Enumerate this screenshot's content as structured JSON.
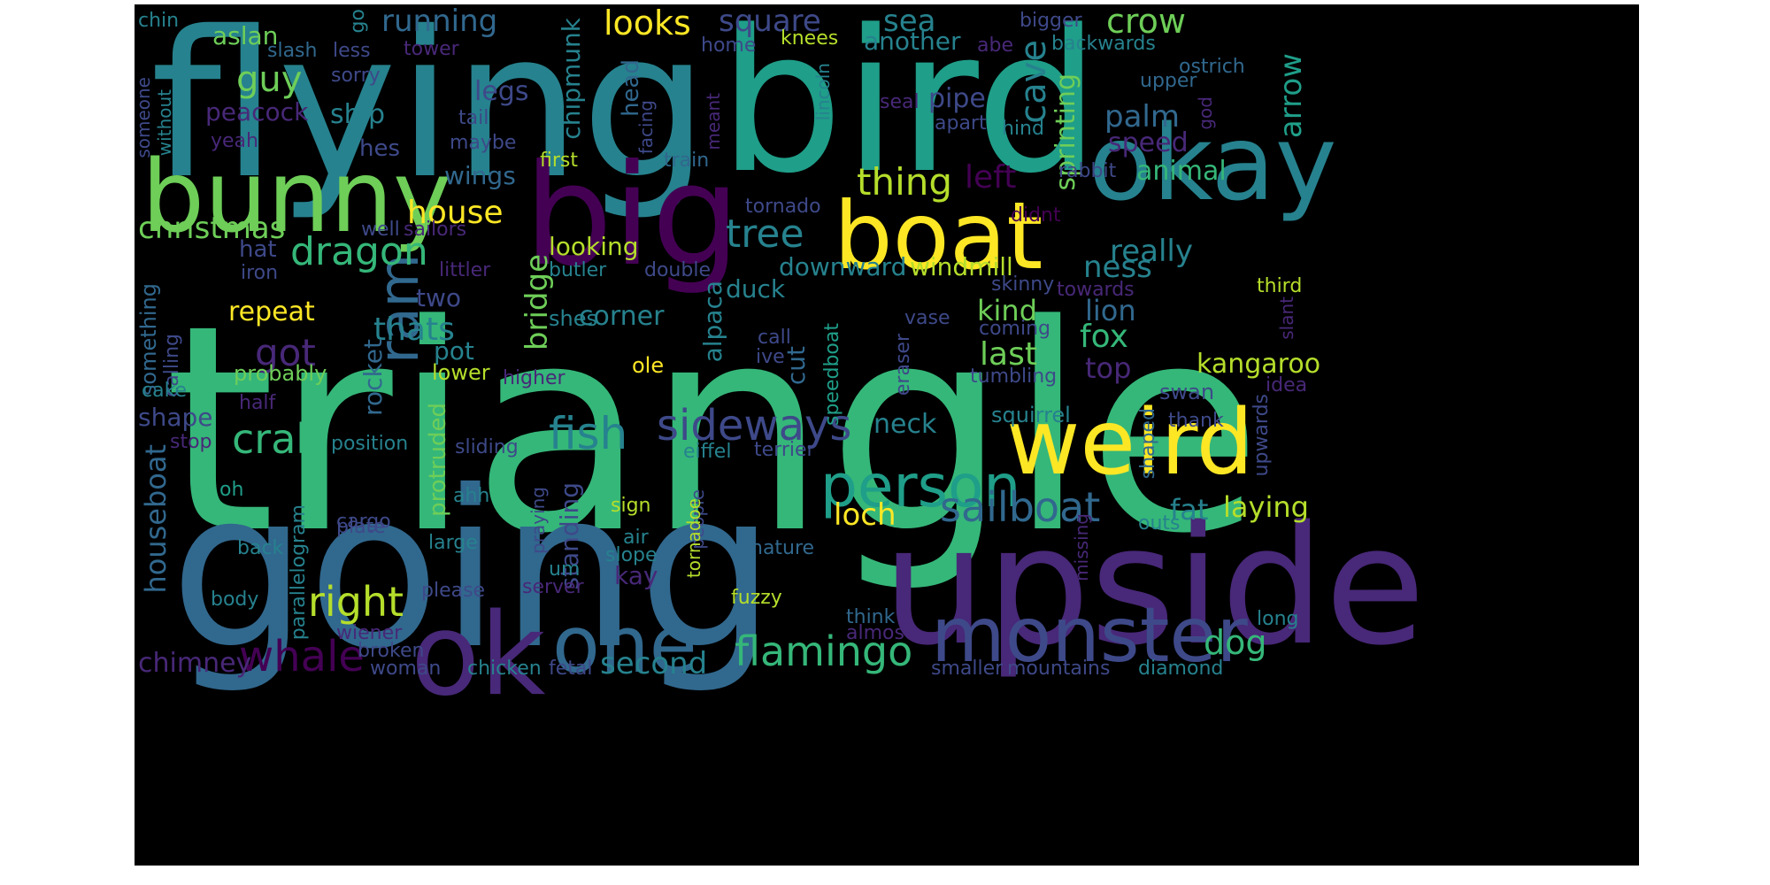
{
  "palette": {
    "background": "#000000",
    "colors": [
      "#440154",
      "#482878",
      "#3e4989",
      "#31688e",
      "#26828e",
      "#1f9e89",
      "#35b779",
      "#6ece58",
      "#b5de2b",
      "#fde725"
    ]
  },
  "words": [
    {
      "text": "triangle",
      "size": 322,
      "color": "#35b779"
    },
    {
      "text": "going",
      "size": 245,
      "color": "#31688e"
    },
    {
      "text": "flying",
      "size": 228,
      "color": "#26828e"
    },
    {
      "text": "bird",
      "size": 222,
      "color": "#1f9e89"
    },
    {
      "text": "upside",
      "size": 185,
      "color": "#482878"
    },
    {
      "text": "big",
      "size": 158,
      "color": "#440154"
    },
    {
      "text": "ok",
      "size": 128,
      "color": "#482878"
    },
    {
      "text": "okay",
      "size": 118,
      "color": "#26828e"
    },
    {
      "text": "bunny",
      "size": 112,
      "color": "#6ece58"
    },
    {
      "text": "boat",
      "size": 105,
      "color": "#fde725"
    },
    {
      "text": "weird",
      "size": 102,
      "color": "#fde725"
    },
    {
      "text": "one",
      "size": 88,
      "color": "#31688e"
    },
    {
      "text": "monster",
      "size": 86,
      "color": "#3e4989"
    },
    {
      "text": "person",
      "size": 66,
      "color": "#1f9e89"
    },
    {
      "text": "ram",
      "size": 62,
      "color": "#31688e"
    },
    {
      "text": "fish",
      "size": 50,
      "color": "#26828e"
    },
    {
      "text": "sideways",
      "size": 48,
      "color": "#3e4989"
    },
    {
      "text": "whale",
      "size": 48,
      "color": "#440154"
    },
    {
      "text": "crab",
      "size": 46,
      "color": "#35b779"
    },
    {
      "text": "sailboat",
      "size": 46,
      "color": "#31688e"
    },
    {
      "text": "flamingo",
      "size": 46,
      "color": "#35b779"
    },
    {
      "text": "right",
      "size": 46,
      "color": "#b5de2b"
    },
    {
      "text": "dragon",
      "size": 44,
      "color": "#35b779"
    },
    {
      "text": "tree",
      "size": 44,
      "color": "#26828e"
    },
    {
      "text": "got",
      "size": 42,
      "color": "#482878"
    },
    {
      "text": "thing",
      "size": 42,
      "color": "#b5de2b"
    },
    {
      "text": "cave",
      "size": 40,
      "color": "#26828e"
    },
    {
      "text": "guy",
      "size": 40,
      "color": "#6ece58"
    },
    {
      "text": "crow",
      "size": 38,
      "color": "#6ece58"
    },
    {
      "text": "looks",
      "size": 38,
      "color": "#fde725"
    },
    {
      "text": "dog",
      "size": 38,
      "color": "#35b779"
    },
    {
      "text": "thats",
      "size": 36,
      "color": "#26828e"
    },
    {
      "text": "fox",
      "size": 36,
      "color": "#35b779"
    },
    {
      "text": "last",
      "size": 36,
      "color": "#6ece58"
    },
    {
      "text": "left",
      "size": 36,
      "color": "#440154"
    },
    {
      "text": "house",
      "size": 36,
      "color": "#fde725"
    },
    {
      "text": "bridge",
      "size": 34,
      "color": "#6ece58"
    },
    {
      "text": "christmas",
      "size": 34,
      "color": "#6ece58"
    },
    {
      "text": "running",
      "size": 34,
      "color": "#31688e"
    },
    {
      "text": "square",
      "size": 34,
      "color": "#3e4989"
    },
    {
      "text": "sea",
      "size": 34,
      "color": "#26828e"
    },
    {
      "text": "second",
      "size": 34,
      "color": "#26828e"
    },
    {
      "text": "loch",
      "size": 34,
      "color": "#fde725"
    },
    {
      "text": "ness",
      "size": 34,
      "color": "#26828e"
    },
    {
      "text": "really",
      "size": 34,
      "color": "#26828e"
    },
    {
      "text": "palm",
      "size": 34,
      "color": "#31688e"
    },
    {
      "text": "arrow",
      "size": 34,
      "color": "#1f9e89"
    },
    {
      "text": "houseboat",
      "size": 32,
      "color": "#31688e"
    },
    {
      "text": "kind",
      "size": 32,
      "color": "#6ece58"
    },
    {
      "text": "lion",
      "size": 32,
      "color": "#31688e"
    },
    {
      "text": "top",
      "size": 32,
      "color": "#482878"
    },
    {
      "text": "fat",
      "size": 32,
      "color": "#26828e"
    },
    {
      "text": "laying",
      "size": 32,
      "color": "#b5de2b"
    },
    {
      "text": "chimney",
      "size": 30,
      "color": "#482878"
    },
    {
      "text": "repeat",
      "size": 30,
      "color": "#fde725"
    },
    {
      "text": "corner",
      "size": 30,
      "color": "#26828e"
    },
    {
      "text": "legs",
      "size": 30,
      "color": "#3e4989"
    },
    {
      "text": "ship",
      "size": 30,
      "color": "#26828e"
    },
    {
      "text": "pipe",
      "size": 30,
      "color": "#3e4989"
    },
    {
      "text": "neck",
      "size": 30,
      "color": "#26828e"
    },
    {
      "text": "kangaroo",
      "size": 30,
      "color": "#b5de2b"
    },
    {
      "text": "speed",
      "size": 30,
      "color": "#482878"
    },
    {
      "text": "animal",
      "size": 30,
      "color": "#35b779"
    },
    {
      "text": "sprinting",
      "size": 30,
      "color": "#6ece58"
    },
    {
      "text": "standing",
      "size": 28,
      "color": "#3e4989"
    },
    {
      "text": "wings",
      "size": 28,
      "color": "#31688e"
    },
    {
      "text": "aslan",
      "size": 28,
      "color": "#6ece58"
    },
    {
      "text": "peacock",
      "size": 28,
      "color": "#482878"
    },
    {
      "text": "chipmunk",
      "size": 28,
      "color": "#26828e"
    },
    {
      "text": "downward",
      "size": 28,
      "color": "#26828e"
    },
    {
      "text": "windmill",
      "size": 28,
      "color": "#b5de2b"
    },
    {
      "text": "duck",
      "size": 28,
      "color": "#26828e"
    },
    {
      "text": "looking",
      "size": 28,
      "color": "#b5de2b"
    },
    {
      "text": "two",
      "size": 28,
      "color": "#3e4989"
    },
    {
      "text": "pot",
      "size": 28,
      "color": "#26828e"
    },
    {
      "text": "alpaca",
      "size": 28,
      "color": "#26828e"
    },
    {
      "text": "shape",
      "size": 28,
      "color": "#3e4989"
    },
    {
      "text": "rocket",
      "size": 28,
      "color": "#31688e"
    },
    {
      "text": "cut",
      "size": 28,
      "color": "#31688e"
    },
    {
      "text": "kay",
      "size": 28,
      "color": "#482878"
    },
    {
      "text": "another",
      "size": 28,
      "color": "#26828e"
    },
    {
      "text": "hat",
      "size": 26,
      "color": "#3e4989"
    },
    {
      "text": "head",
      "size": 26,
      "color": "#31688e"
    },
    {
      "text": "protruded",
      "size": 26,
      "color": "#6ece58"
    },
    {
      "text": "hes",
      "size": 26,
      "color": "#3e4989"
    },
    {
      "text": "something",
      "size": 24,
      "color": "#31688e"
    },
    {
      "text": "probably",
      "size": 24,
      "color": "#6ece58"
    },
    {
      "text": "squirrel",
      "size": 24,
      "color": "#26828e"
    },
    {
      "text": "swan",
      "size": 24,
      "color": "#3e4989"
    },
    {
      "text": "lower",
      "size": 24,
      "color": "#b5de2b"
    },
    {
      "text": "ole",
      "size": 24,
      "color": "#fde725"
    },
    {
      "text": "shes",
      "size": 24,
      "color": "#26828e"
    },
    {
      "text": "yeah",
      "size": 22,
      "color": "#482878"
    },
    {
      "text": "first",
      "size": 22,
      "color": "#b5de2b"
    },
    {
      "text": "train",
      "size": 22,
      "color": "#31688e"
    },
    {
      "text": "maybe",
      "size": 22,
      "color": "#3e4989"
    },
    {
      "text": "tail",
      "size": 22,
      "color": "#3e4989"
    },
    {
      "text": "knees",
      "size": 22,
      "color": "#b5de2b"
    },
    {
      "text": "home",
      "size": 22,
      "color": "#3e4989"
    },
    {
      "text": "sorry",
      "size": 22,
      "color": "#3e4989"
    },
    {
      "text": "less",
      "size": 22,
      "color": "#3e4989"
    },
    {
      "text": "slash",
      "size": 22,
      "color": "#31688e"
    },
    {
      "text": "tower",
      "size": 22,
      "color": "#482878"
    },
    {
      "text": "go",
      "size": 22,
      "color": "#26828e"
    },
    {
      "text": "chin",
      "size": 22,
      "color": "#26828e"
    },
    {
      "text": "bigger",
      "size": 22,
      "color": "#3e4989"
    },
    {
      "text": "backwards",
      "size": 22,
      "color": "#26828e"
    },
    {
      "text": "ostrich",
      "size": 22,
      "color": "#31688e"
    },
    {
      "text": "abe",
      "size": 22,
      "color": "#482878"
    },
    {
      "text": "upper",
      "size": 22,
      "color": "#31688e"
    },
    {
      "text": "seal",
      "size": 22,
      "color": "#482878"
    },
    {
      "text": "apart",
      "size": 22,
      "color": "#3e4989"
    },
    {
      "text": "hind",
      "size": 22,
      "color": "#26828e"
    },
    {
      "text": "rabbit",
      "size": 22,
      "color": "#3e4989"
    },
    {
      "text": "didnt",
      "size": 22,
      "color": "#440154"
    },
    {
      "text": "tornado",
      "size": 22,
      "color": "#3e4989"
    },
    {
      "text": "sailors",
      "size": 22,
      "color": "#482878"
    },
    {
      "text": "well",
      "size": 22,
      "color": "#3e4989"
    },
    {
      "text": "iron",
      "size": 22,
      "color": "#3e4989"
    },
    {
      "text": "littler",
      "size": 22,
      "color": "#482878"
    },
    {
      "text": "butler",
      "size": 22,
      "color": "#26828e"
    },
    {
      "text": "double",
      "size": 22,
      "color": "#3e4989"
    },
    {
      "text": "skinny",
      "size": 22,
      "color": "#3e4989"
    },
    {
      "text": "towards",
      "size": 22,
      "color": "#482878"
    },
    {
      "text": "third",
      "size": 22,
      "color": "#b5de2b"
    },
    {
      "text": "coming",
      "size": 22,
      "color": "#3e4989"
    },
    {
      "text": "vase",
      "size": 22,
      "color": "#3e4989"
    },
    {
      "text": "call",
      "size": 22,
      "color": "#3e4989"
    },
    {
      "text": "ive",
      "size": 22,
      "color": "#3e4989"
    },
    {
      "text": "tumbling",
      "size": 22,
      "color": "#3e4989"
    },
    {
      "text": "idea",
      "size": 22,
      "color": "#482878"
    },
    {
      "text": "thank",
      "size": 22,
      "color": "#3e4989"
    },
    {
      "text": "eraser",
      "size": 22,
      "color": "#3e4989"
    },
    {
      "text": "speedboat",
      "size": 22,
      "color": "#1f9e89"
    },
    {
      "text": "calling",
      "size": 22,
      "color": "#3e4989"
    },
    {
      "text": "cake",
      "size": 22,
      "color": "#26828e"
    },
    {
      "text": "half",
      "size": 22,
      "color": "#482878"
    },
    {
      "text": "higher",
      "size": 22,
      "color": "#482878"
    },
    {
      "text": "stop",
      "size": 22,
      "color": "#482878"
    },
    {
      "text": "position",
      "size": 22,
      "color": "#26828e"
    },
    {
      "text": "sliding",
      "size": 22,
      "color": "#3e4989"
    },
    {
      "text": "eiffel",
      "size": 22,
      "color": "#26828e"
    },
    {
      "text": "terrier",
      "size": 22,
      "color": "#3e4989"
    },
    {
      "text": "oh",
      "size": 22,
      "color": "#1f9e89"
    },
    {
      "text": "ahh",
      "size": 22,
      "color": "#26828e"
    },
    {
      "text": "sign",
      "size": 22,
      "color": "#b5de2b"
    },
    {
      "text": "plate",
      "size": 22,
      "color": "#3e4989"
    },
    {
      "text": "cargo",
      "size": 22,
      "color": "#3e4989"
    },
    {
      "text": "large",
      "size": 22,
      "color": "#26828e"
    },
    {
      "text": "air",
      "size": 22,
      "color": "#26828e"
    },
    {
      "text": "slope",
      "size": 22,
      "color": "#26828e"
    },
    {
      "text": "nature",
      "size": 22,
      "color": "#31688e"
    },
    {
      "text": "back",
      "size": 22,
      "color": "#26828e"
    },
    {
      "text": "um",
      "size": 22,
      "color": "#26828e"
    },
    {
      "text": "please",
      "size": 22,
      "color": "#3e4989"
    },
    {
      "text": "server",
      "size": 22,
      "color": "#482878"
    },
    {
      "text": "body",
      "size": 22,
      "color": "#26828e"
    },
    {
      "text": "fuzzy",
      "size": 22,
      "color": "#b5de2b"
    },
    {
      "text": "outs",
      "size": 22,
      "color": "#26828e"
    },
    {
      "text": "shaped",
      "size": 22,
      "color": "#31688e"
    },
    {
      "text": "upwards",
      "size": 22,
      "color": "#3e4989"
    },
    {
      "text": "long",
      "size": 22,
      "color": "#26828e"
    },
    {
      "text": "think",
      "size": 22,
      "color": "#31688e"
    },
    {
      "text": "almost",
      "size": 22,
      "color": "#482878"
    },
    {
      "text": "wiener",
      "size": 22,
      "color": "#482878"
    },
    {
      "text": "broken",
      "size": 22,
      "color": "#3e4989"
    },
    {
      "text": "woman",
      "size": 22,
      "color": "#3e4989"
    },
    {
      "text": "chicken",
      "size": 22,
      "color": "#26828e"
    },
    {
      "text": "fetal",
      "size": 22,
      "color": "#3e4989"
    },
    {
      "text": "smaller",
      "size": 22,
      "color": "#3e4989"
    },
    {
      "text": "mountains",
      "size": 22,
      "color": "#3e4989"
    },
    {
      "text": "diamond",
      "size": 22,
      "color": "#26828e"
    },
    {
      "text": "someone",
      "size": 20,
      "color": "#3e4989"
    },
    {
      "text": "without",
      "size": 20,
      "color": "#26828e"
    },
    {
      "text": "facing",
      "size": 20,
      "color": "#3e4989"
    },
    {
      "text": "meant",
      "size": 20,
      "color": "#482878"
    },
    {
      "text": "lincoln",
      "size": 20,
      "color": "#26828e"
    },
    {
      "text": "god",
      "size": 20,
      "color": "#482878"
    },
    {
      "text": "slant",
      "size": 20,
      "color": "#482878"
    },
    {
      "text": "praying",
      "size": 20,
      "color": "#3e4989"
    },
    {
      "text": "people",
      "size": 20,
      "color": "#3e4989"
    },
    {
      "text": "tornadoe",
      "size": 20,
      "color": "#b5de2b"
    },
    {
      "text": "missing",
      "size": 20,
      "color": "#482878"
    },
    {
      "text": "parallelogram",
      "size": 22,
      "color": "#26828e"
    }
  ]
}
